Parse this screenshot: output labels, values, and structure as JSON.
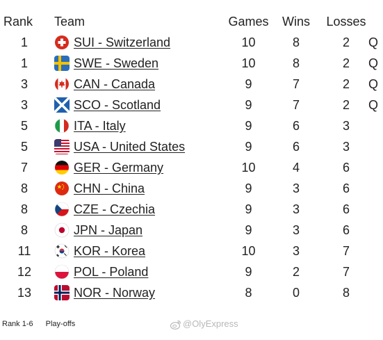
{
  "header": {
    "rank": "Rank",
    "team": "Team",
    "games": "Games",
    "wins": "Wins",
    "losses": "Losses"
  },
  "rows": [
    {
      "rank": "1",
      "flag": "switzerland-flag-icon",
      "team": "SUI - Switzerland",
      "games": "10",
      "wins": "8",
      "losses": "2",
      "q": "Q"
    },
    {
      "rank": "1",
      "flag": "sweden-flag-icon",
      "team": "SWE - Sweden",
      "games": "10",
      "wins": "8",
      "losses": "2",
      "q": "Q"
    },
    {
      "rank": "3",
      "flag": "canada-flag-icon",
      "team": "CAN - Canada",
      "games": "9",
      "wins": "7",
      "losses": "2",
      "q": "Q"
    },
    {
      "rank": "3",
      "flag": "scotland-flag-icon",
      "team": "SCO - Scotland",
      "games": "9",
      "wins": "7",
      "losses": "2",
      "q": "Q"
    },
    {
      "rank": "5",
      "flag": "italy-flag-icon",
      "team": "ITA - Italy",
      "games": "9",
      "wins": "6",
      "losses": "3",
      "q": ""
    },
    {
      "rank": "5",
      "flag": "usa-flag-icon",
      "team": "USA - United States",
      "games": "9",
      "wins": "6",
      "losses": "3",
      "q": ""
    },
    {
      "rank": "7",
      "flag": "germany-flag-icon",
      "team": "GER - Germany",
      "games": "10",
      "wins": "4",
      "losses": "6",
      "q": ""
    },
    {
      "rank": "8",
      "flag": "china-flag-icon",
      "team": "CHN - China",
      "games": "9",
      "wins": "3",
      "losses": "6",
      "q": ""
    },
    {
      "rank": "8",
      "flag": "czechia-flag-icon",
      "team": "CZE - Czechia",
      "games": "9",
      "wins": "3",
      "losses": "6",
      "q": ""
    },
    {
      "rank": "8",
      "flag": "japan-flag-icon",
      "team": "JPN - Japan",
      "games": "9",
      "wins": "3",
      "losses": "6",
      "q": ""
    },
    {
      "rank": "11",
      "flag": "korea-flag-icon",
      "team": "KOR - Korea",
      "games": "10",
      "wins": "3",
      "losses": "7",
      "q": ""
    },
    {
      "rank": "12",
      "flag": "poland-flag-icon",
      "team": "POL - Poland",
      "games": "9",
      "wins": "2",
      "losses": "7",
      "q": ""
    },
    {
      "rank": "13",
      "flag": "norway-flag-icon",
      "team": "NOR - Norway",
      "games": "8",
      "wins": "0",
      "losses": "8",
      "q": ""
    }
  ],
  "legend": {
    "range": "Rank 1-6",
    "label": "Play-offs"
  },
  "watermark": {
    "text": "@OlyExpress",
    "icon": "weibo-icon"
  },
  "colors": {
    "text": "#222222",
    "watermark": "#b8b8b8"
  }
}
